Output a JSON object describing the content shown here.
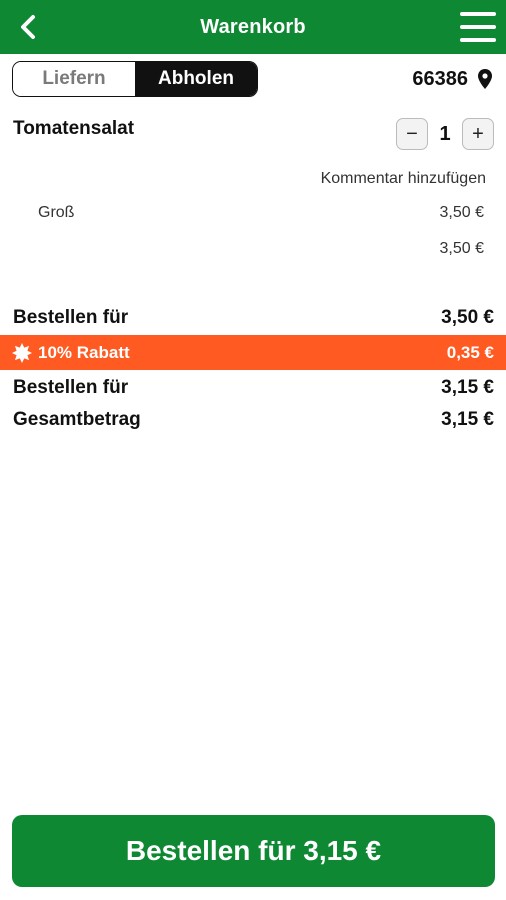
{
  "header": {
    "title": "Warenkorb",
    "back_icon": "chevron-left-icon",
    "menu_icon": "hamburger-menu-icon"
  },
  "mode_toggle": {
    "options": [
      "Liefern",
      "Abholen"
    ],
    "selected": "Abholen"
  },
  "location": {
    "postcode": "66386",
    "icon": "location-pin-icon"
  },
  "cart": {
    "item_name": "Tomatensalat",
    "quantity": "1",
    "decrement_label": "−",
    "increment_label": "+",
    "comment_link": "Kommentar hinzufügen",
    "variant_name": "Groß",
    "variant_price": "3,50 €",
    "item_total": "3,50 €"
  },
  "summary": {
    "subtotal_label": "Bestellen für",
    "subtotal_value": "3,50 €",
    "discount_label": "10% Rabatt",
    "discount_value": "0,35 €",
    "after_discount_label": "Bestellen für",
    "after_discount_value": "3,15 €",
    "total_label": "Gesamtbetrag",
    "total_value": "3,15 €"
  },
  "order_button": {
    "label": "Bestellen für 3,15 €"
  },
  "colors": {
    "brand_green": "#0e8833",
    "discount_orange": "#ff5a21"
  }
}
